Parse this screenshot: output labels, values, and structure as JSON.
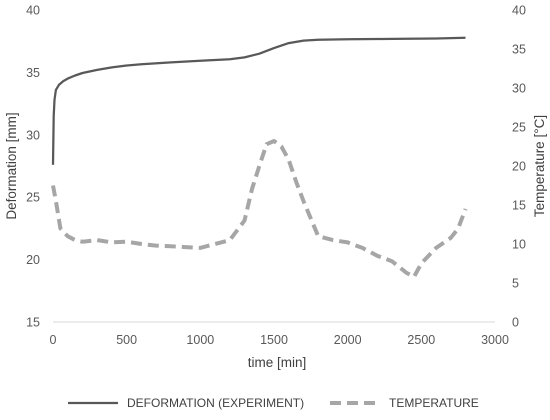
{
  "chart_data": {
    "type": "line",
    "title": "",
    "xlabel": "time [min]",
    "ylabel_left": "Deformation [mm]",
    "ylabel_right": "Temperature [°C]",
    "xlim": [
      0,
      3000
    ],
    "ylim_left": [
      15,
      40
    ],
    "ylim_right": [
      0,
      40
    ],
    "x_ticks": [
      0,
      500,
      1000,
      1500,
      2000,
      2500,
      3000
    ],
    "y_left_ticks": [
      15,
      20,
      25,
      30,
      35,
      40
    ],
    "y_right_ticks": [
      0,
      5,
      10,
      15,
      20,
      25,
      30,
      35,
      40
    ],
    "grid": false,
    "legend_position": "bottom",
    "series": [
      {
        "name": "DEFORMATION (EXPERIMENT)",
        "axis": "left",
        "style": "solid",
        "color": "#595959",
        "points": [
          [
            0,
            27.6
          ],
          [
            5,
            31.5
          ],
          [
            10,
            32.8
          ],
          [
            20,
            33.6
          ],
          [
            40,
            34.0
          ],
          [
            70,
            34.3
          ],
          [
            100,
            34.5
          ],
          [
            150,
            34.75
          ],
          [
            200,
            34.95
          ],
          [
            300,
            35.2
          ],
          [
            400,
            35.4
          ],
          [
            500,
            35.55
          ],
          [
            600,
            35.65
          ],
          [
            800,
            35.8
          ],
          [
            1000,
            35.93
          ],
          [
            1200,
            36.05
          ],
          [
            1300,
            36.2
          ],
          [
            1400,
            36.5
          ],
          [
            1500,
            36.95
          ],
          [
            1600,
            37.35
          ],
          [
            1700,
            37.55
          ],
          [
            1800,
            37.62
          ],
          [
            2000,
            37.65
          ],
          [
            2200,
            37.68
          ],
          [
            2400,
            37.7
          ],
          [
            2600,
            37.72
          ],
          [
            2800,
            37.77
          ]
        ]
      },
      {
        "name": "TEMPERATURE",
        "axis": "right",
        "style": "dashed",
        "color": "#a6a6a6",
        "points": [
          [
            0,
            17.5
          ],
          [
            20,
            15.5
          ],
          [
            50,
            12.0
          ],
          [
            100,
            11.0
          ],
          [
            150,
            10.5
          ],
          [
            200,
            10.3
          ],
          [
            300,
            10.5
          ],
          [
            400,
            10.2
          ],
          [
            500,
            10.3
          ],
          [
            600,
            10.0
          ],
          [
            700,
            9.8
          ],
          [
            800,
            9.7
          ],
          [
            900,
            9.6
          ],
          [
            1000,
            9.5
          ],
          [
            1100,
            10.0
          ],
          [
            1200,
            10.5
          ],
          [
            1300,
            13.0
          ],
          [
            1350,
            17.0
          ],
          [
            1400,
            20.0
          ],
          [
            1450,
            22.8
          ],
          [
            1500,
            23.2
          ],
          [
            1550,
            22.5
          ],
          [
            1600,
            20.8
          ],
          [
            1650,
            18.0
          ],
          [
            1700,
            15.5
          ],
          [
            1800,
            11.0
          ],
          [
            1900,
            10.5
          ],
          [
            2000,
            10.2
          ],
          [
            2100,
            9.5
          ],
          [
            2200,
            8.5
          ],
          [
            2300,
            7.8
          ],
          [
            2400,
            6.3
          ],
          [
            2450,
            5.8
          ],
          [
            2500,
            7.5
          ],
          [
            2600,
            9.5
          ],
          [
            2700,
            10.8
          ],
          [
            2750,
            12.0
          ],
          [
            2800,
            14.5
          ]
        ]
      }
    ]
  }
}
